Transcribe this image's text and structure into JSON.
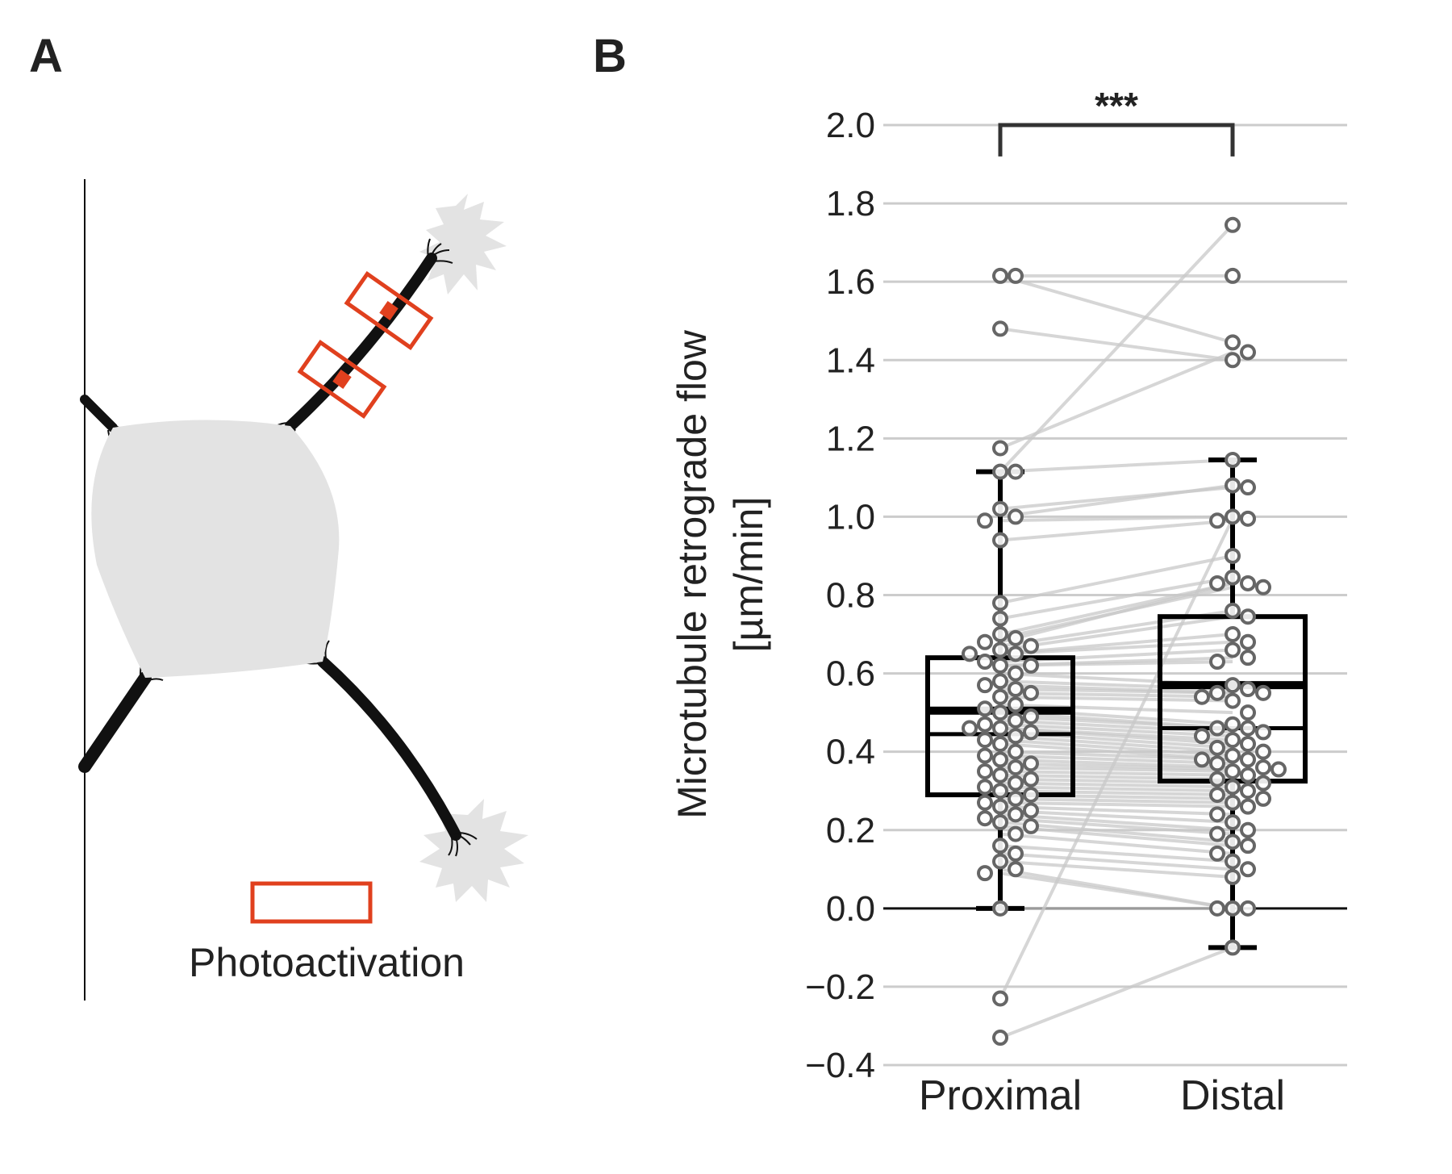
{
  "panels": {
    "a_label": "A",
    "b_label": "B"
  },
  "diagram": {
    "legend_label": "Photoactivation",
    "colors": {
      "marker": "#e0401e",
      "cell": "#e3e3e3",
      "neurite": "#111111"
    },
    "icons": [
      "cell-body",
      "neurite-bundle",
      "growth-cone",
      "photoactivation-box"
    ]
  },
  "chart_data": {
    "type": "box-paired-scatter",
    "categories": [
      "Proximal",
      "Distal"
    ],
    "ylabel_line1": "Microtubule retrograde flow",
    "ylabel_line2": "[µm/min]",
    "ylim": [
      -0.4,
      2.0
    ],
    "yticks": [
      2.0,
      1.8,
      1.6,
      1.4,
      1.2,
      1.0,
      0.8,
      0.6,
      0.4,
      0.2,
      0.0,
      -0.2,
      -0.4
    ],
    "ytick_labels": [
      "2.0",
      "1.8",
      "1.6",
      "1.4",
      "1.2",
      "1.0",
      "0.8",
      "0.6",
      "0.4",
      "0.2",
      "0.0",
      "−0.2",
      "−0.4"
    ],
    "grid": true,
    "significance": "***",
    "colors": {
      "point": "#666666",
      "pair_line": "#c8c8c8",
      "box": "#000000",
      "grid": "#cccccc"
    },
    "boxes": [
      {
        "name": "Proximal",
        "q1": 0.29,
        "median": 0.445,
        "q3": 0.64,
        "mean": 0.505,
        "whisker_low": 0.0,
        "whisker_high": 1.115
      },
      {
        "name": "Distal",
        "q1": 0.325,
        "median": 0.46,
        "q3": 0.745,
        "mean": 0.57,
        "whisker_low": -0.1,
        "whisker_high": 1.145
      }
    ],
    "pairs": [
      [
        1.615,
        1.615
      ],
      [
        1.615,
        1.445
      ],
      [
        1.48,
        1.4
      ],
      [
        1.175,
        1.42
      ],
      [
        1.115,
        1.745
      ],
      [
        1.115,
        1.145
      ],
      [
        1.02,
        1.075
      ],
      [
        1.0,
        1.08
      ],
      [
        0.99,
        1.0
      ],
      [
        0.94,
        0.99
      ],
      [
        0.78,
        0.9
      ],
      [
        0.74,
        0.845
      ],
      [
        0.7,
        0.83
      ],
      [
        0.69,
        0.82
      ],
      [
        0.68,
        0.83
      ],
      [
        0.67,
        0.76
      ],
      [
        0.66,
        0.745
      ],
      [
        0.65,
        0.7
      ],
      [
        0.65,
        0.68
      ],
      [
        0.63,
        0.66
      ],
      [
        0.62,
        0.64
      ],
      [
        0.62,
        0.63
      ],
      [
        0.6,
        0.57
      ],
      [
        0.58,
        0.56
      ],
      [
        0.57,
        0.55
      ],
      [
        0.56,
        0.55
      ],
      [
        0.55,
        0.54
      ],
      [
        0.54,
        0.53
      ],
      [
        0.52,
        0.5
      ],
      [
        0.51,
        0.47
      ],
      [
        0.5,
        0.46
      ],
      [
        0.49,
        0.46
      ],
      [
        0.48,
        0.45
      ],
      [
        0.47,
        0.44
      ],
      [
        0.46,
        0.43
      ],
      [
        0.46,
        0.42
      ],
      [
        0.45,
        0.41
      ],
      [
        0.44,
        0.4
      ],
      [
        0.43,
        0.39
      ],
      [
        0.42,
        0.38
      ],
      [
        0.4,
        0.38
      ],
      [
        0.39,
        0.37
      ],
      [
        0.38,
        0.36
      ],
      [
        0.37,
        0.355
      ],
      [
        0.36,
        0.35
      ],
      [
        0.35,
        0.34
      ],
      [
        0.34,
        0.33
      ],
      [
        0.33,
        0.32
      ],
      [
        0.32,
        0.31
      ],
      [
        0.31,
        0.3
      ],
      [
        0.3,
        0.29
      ],
      [
        0.29,
        0.28
      ],
      [
        0.28,
        0.27
      ],
      [
        0.27,
        0.26
      ],
      [
        0.26,
        0.24
      ],
      [
        0.25,
        0.22
      ],
      [
        0.24,
        0.2
      ],
      [
        0.23,
        0.19
      ],
      [
        0.22,
        0.17
      ],
      [
        0.21,
        0.16
      ],
      [
        0.19,
        0.14
      ],
      [
        0.16,
        0.12
      ],
      [
        0.14,
        0.1
      ],
      [
        0.12,
        0.08
      ],
      [
        0.1,
        0.0
      ],
      [
        0.09,
        0.0
      ],
      [
        0.0,
        0.0
      ],
      [
        -0.23,
        0.995
      ],
      [
        -0.33,
        -0.1
      ]
    ]
  }
}
